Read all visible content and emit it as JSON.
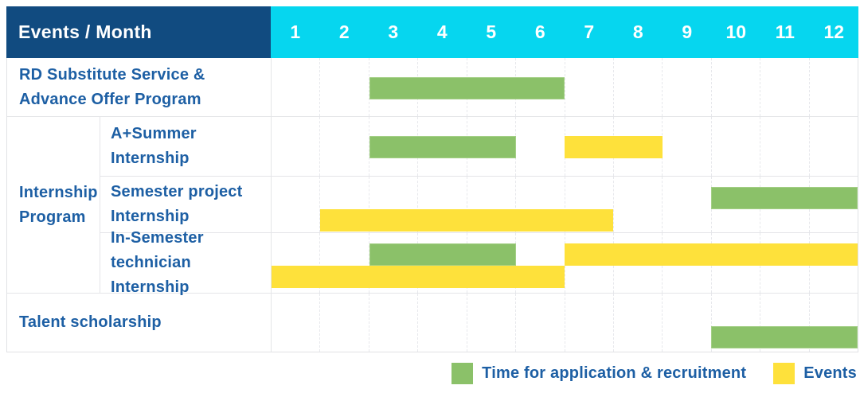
{
  "header": {
    "events_month_label": "Events / Month",
    "months": [
      "1",
      "2",
      "3",
      "4",
      "5",
      "6",
      "7",
      "8",
      "9",
      "10",
      "11",
      "12"
    ]
  },
  "rows": {
    "rd": {
      "line1": "RD Substitute Service &",
      "line2": "Advance Offer Program"
    },
    "internship_group": {
      "line1": "Internship",
      "line2": "Program"
    },
    "a_summer": {
      "line1": "A+Summer",
      "line2": "Internship"
    },
    "semester_project": {
      "line1": "Semester project",
      "line2": "Internship"
    },
    "in_semester": {
      "line1": "In-Semester",
      "line2": "technician Internship"
    },
    "talent": {
      "label": "Talent scholarship"
    }
  },
  "legend": {
    "application_label": "Time for application & recruitment",
    "events_label": "Events"
  },
  "colors": {
    "header_blue": "#114b80",
    "header_cyan": "#06d6ef",
    "bar_green": "#8bc169",
    "bar_yellow": "#fee13b",
    "text_blue": "#1d5fa4"
  },
  "chart_data": {
    "type": "gantt",
    "title": "Events / Month",
    "x_unit": "month",
    "x_range": [
      1,
      12
    ],
    "x_ticks": [
      1,
      2,
      3,
      4,
      5,
      6,
      7,
      8,
      9,
      10,
      11,
      12
    ],
    "grid": true,
    "legend_position": "bottom-right",
    "legend": [
      {
        "label": "Time for application & recruitment",
        "color": "#8bc169",
        "kind": "application"
      },
      {
        "label": "Events",
        "color": "#fee13b",
        "kind": "event"
      }
    ],
    "rows": [
      {
        "label": "RD Substitute Service & Advance Offer Program",
        "group": null,
        "bars": [
          {
            "kind": "application",
            "start_month": 3,
            "end_month": 6,
            "line": "center"
          }
        ]
      },
      {
        "label": "A+Summer Internship",
        "group": "Internship Program",
        "bars": [
          {
            "kind": "application",
            "start_month": 3,
            "end_month": 5,
            "line": "center"
          },
          {
            "kind": "event",
            "start_month": 7,
            "end_month": 8,
            "line": "center"
          }
        ]
      },
      {
        "label": "Semester project Internship",
        "group": "Internship Program",
        "bars": [
          {
            "kind": "application",
            "start_month": 10,
            "end_month": 12,
            "line": "upper"
          },
          {
            "kind": "event",
            "start_month": 2,
            "end_month": 7,
            "line": "lower"
          }
        ]
      },
      {
        "label": "In-Semester technician Internship",
        "group": "Internship Program",
        "bars": [
          {
            "kind": "application",
            "start_month": 3,
            "end_month": 5,
            "line": "upper"
          },
          {
            "kind": "event",
            "start_month": 7,
            "end_month": 12,
            "line": "upper"
          },
          {
            "kind": "event",
            "start_month": 1,
            "end_month": 6,
            "line": "lower"
          }
        ]
      },
      {
        "label": "Talent scholarship",
        "group": null,
        "bars": [
          {
            "kind": "application",
            "start_month": 10,
            "end_month": 12,
            "line": "lower"
          }
        ]
      }
    ]
  }
}
